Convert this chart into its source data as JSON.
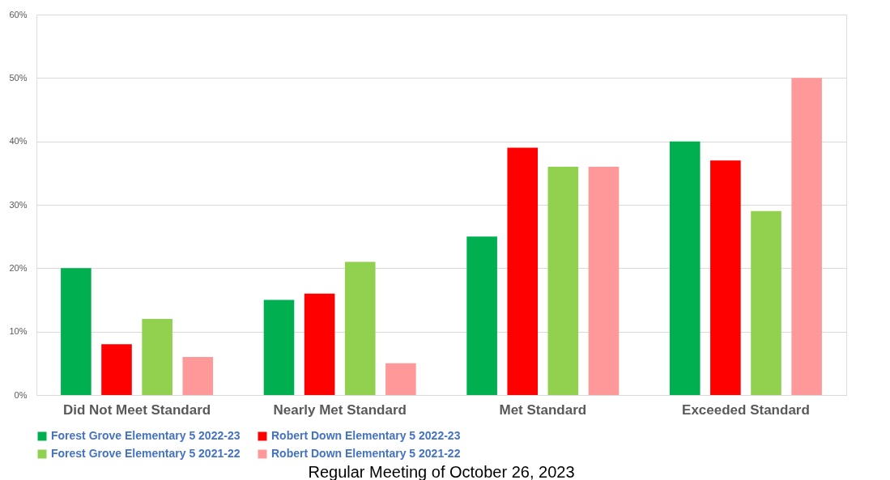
{
  "chart_data": {
    "type": "bar",
    "categories": [
      "Did Not Meet Standard",
      "Nearly Met Standard",
      "Met Standard",
      "Exceeded Standard"
    ],
    "series": [
      {
        "name": "Forest Grove Elementary 5 2022-23",
        "color": "#00b050",
        "values": [
          20,
          15,
          25,
          40
        ]
      },
      {
        "name": "Robert Down Elementary 5 2022-23",
        "color": "#ff0000",
        "values": [
          8,
          16,
          39,
          37
        ]
      },
      {
        "name": "Forest Grove Elementary 5 2021-22",
        "color": "#92d050",
        "values": [
          12,
          21,
          36,
          29
        ]
      },
      {
        "name": "Robert Down Elementary 5 2021-22",
        "color": "#ff9999",
        "values": [
          6,
          5,
          36,
          50
        ]
      }
    ],
    "ylim": [
      0,
      60
    ],
    "yticks": [
      {
        "value": 0,
        "label": "0%"
      },
      {
        "value": 10,
        "label": "10%"
      },
      {
        "value": 20,
        "label": "20%"
      },
      {
        "value": 30,
        "label": "30%"
      },
      {
        "value": 40,
        "label": "40%"
      },
      {
        "value": 50,
        "label": "50%"
      },
      {
        "value": 60,
        "label": "60%"
      }
    ],
    "grid": "y",
    "legend": "bottom",
    "annotations": [
      "Regular Meeting of October 26, 2023"
    ]
  }
}
